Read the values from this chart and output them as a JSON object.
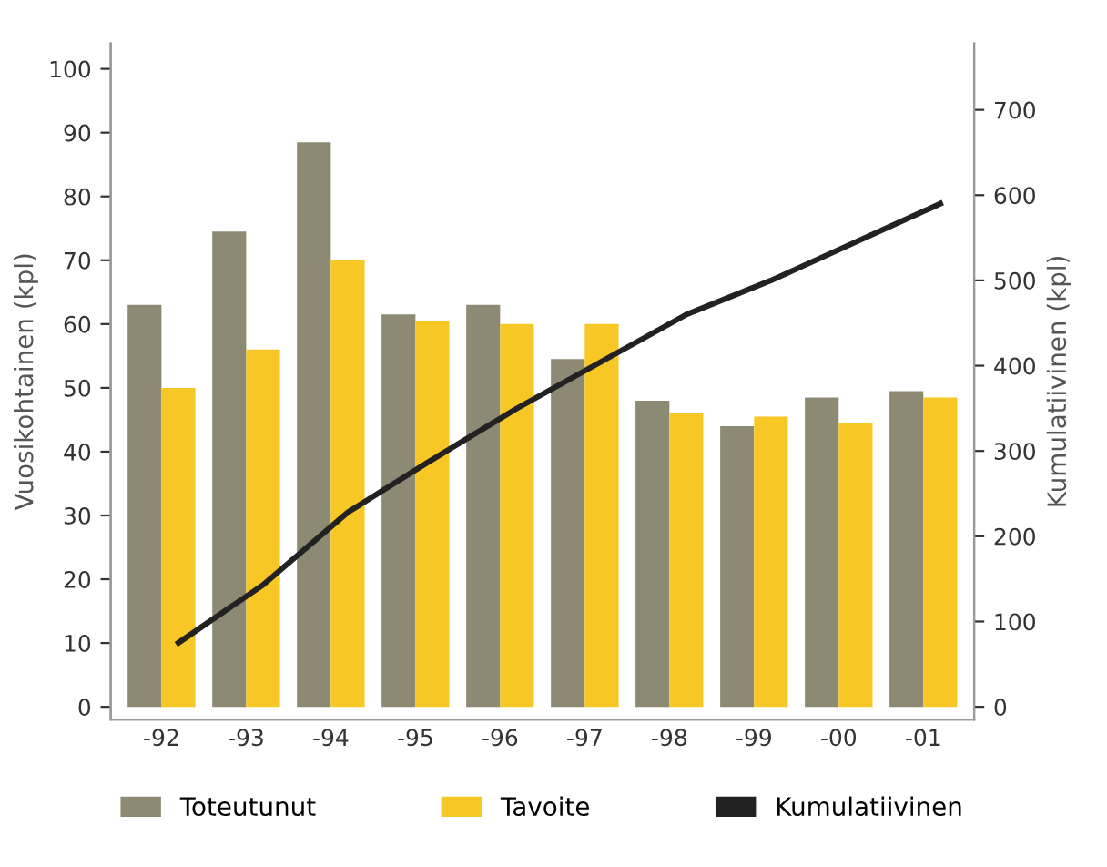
{
  "chart_data": {
    "type": "bar",
    "categories": [
      "-92",
      "-93",
      "-94",
      "-95",
      "-96",
      "-97",
      "-98",
      "-99",
      "-00",
      "-01"
    ],
    "ylabel": "Vuosikohtainen (kpl)",
    "y2label": "Kumulatiivinen (kpl)",
    "series": [
      {
        "name": "Toteutunut",
        "color": "#8c8a72",
        "values": [
          63,
          74.5,
          88.5,
          61.5,
          63,
          54.5,
          48,
          44,
          48.5,
          49.5
        ]
      },
      {
        "name": "Tavoite",
        "color": "#f7c825",
        "values": [
          50,
          56,
          70,
          60.5,
          60,
          60,
          46,
          45.5,
          44.5,
          48.5
        ]
      },
      {
        "name": "Kumulatiivinen",
        "type": "line",
        "axis": "y2",
        "color": "#222222",
        "values": [
          75,
          143,
          228,
          290,
          350,
          405,
          460,
          500,
          545,
          590
        ]
      }
    ],
    "ylim": [
      -2,
      104
    ],
    "yticks": [
      0,
      10,
      20,
      30,
      40,
      50,
      60,
      70,
      80,
      90,
      100
    ],
    "y2lim": [
      -15,
      778
    ],
    "y2ticks": [
      0,
      100,
      200,
      300,
      400,
      500,
      600,
      700
    ],
    "grid": false,
    "legend": "bottom"
  }
}
